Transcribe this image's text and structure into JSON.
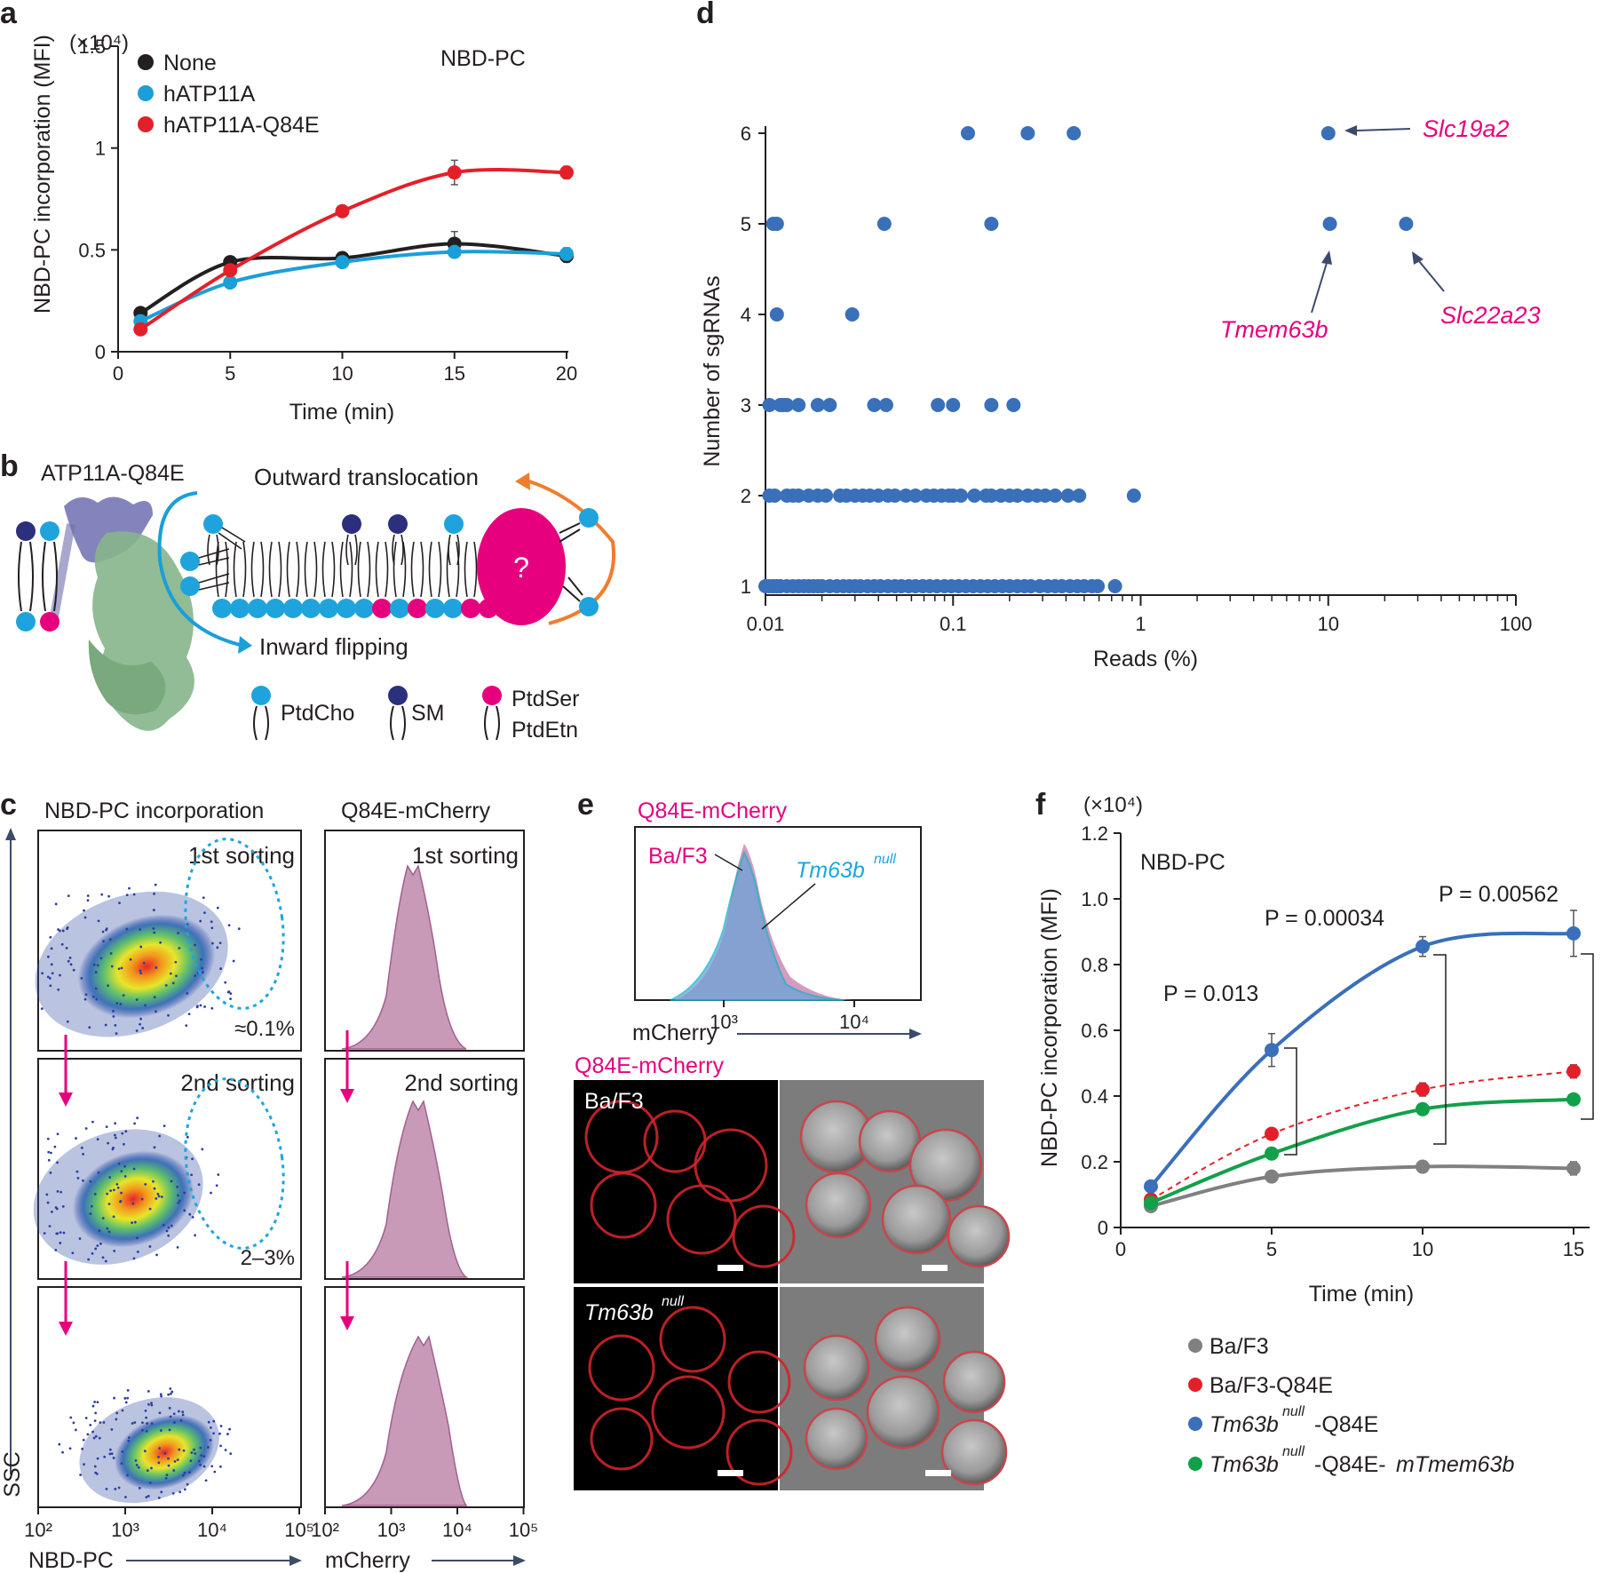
{
  "panels": {
    "a": {
      "label": "a",
      "multiplier": "(×10⁴)",
      "title": "NBD-PC",
      "ylabel": "NBD-PC incorporation (MFI)",
      "xlabel": "Time (min)",
      "xticks": [
        "0",
        "5",
        "10",
        "15",
        "20"
      ],
      "yticks": [
        "0",
        "0.5",
        "1",
        "1.5"
      ]
    },
    "b": {
      "label": "b",
      "protein": "ATP11A-Q84E",
      "outward": "Outward translocation",
      "inward": "Inward flipping",
      "unknown": "?",
      "legend": [
        "PtdCho",
        "SM",
        "PtdSer",
        "PtdEtn"
      ],
      "colors": {
        "ptdcho": "#1fa3dc",
        "sm": "#2b2f7d",
        "ptdser": "#e6007e"
      }
    },
    "c": {
      "label": "c",
      "col1": "NBD-PC incorporation",
      "col2": "Q84E-mCherry",
      "rounds": [
        "1st sorting",
        "2nd sorting"
      ],
      "gates": [
        "≈0.1%",
        "2–3%"
      ],
      "ylabel": "SSC",
      "xlabel1": "NBD-PC",
      "xlabel2": "mCherry",
      "xticks1": [
        "10²",
        "10³",
        "10⁴",
        "10⁵"
      ],
      "xticks2": [
        "10²",
        "10³",
        "10⁴",
        "10⁵"
      ]
    },
    "d": {
      "label": "d",
      "ylabel": "Number of sgRNAs",
      "xlabel": "Reads (%)",
      "xticks": [
        "0.01",
        "0.1",
        "1",
        "10",
        "100"
      ],
      "yticks": [
        "1",
        "2",
        "3",
        "4",
        "5",
        "6"
      ],
      "genes": [
        "Slc19a2",
        "Tmem63b",
        "Slc22a23"
      ]
    },
    "e": {
      "label": "e",
      "hist_title": "Q84E-mCherry",
      "hist_labels": [
        "Ba/F3",
        "Tm63b",
        "null"
      ],
      "xticks": [
        "10³",
        "10⁴"
      ],
      "xlabel": "mCherry",
      "img_title": "Q84E-mCherry",
      "row_labels": [
        "Ba/F3",
        "Tm63b",
        "null"
      ]
    },
    "f": {
      "label": "f",
      "multiplier": "(×10⁴)",
      "title": "NBD-PC",
      "ylabel": "NBD-PC incorporation (MFI)",
      "xlabel": "Time (min)",
      "xticks": [
        "0",
        "5",
        "10",
        "15"
      ],
      "yticks": [
        "0",
        "0.2",
        "0.4",
        "0.6",
        "0.8",
        "1.0",
        "1.2"
      ],
      "pvalues": [
        "P = 0.013",
        "P = 0.00034",
        "P = 0.00562"
      ],
      "legend": [
        {
          "text": "Ba/F3",
          "sup": "",
          "rest": ""
        },
        {
          "text": "Ba/F3-Q84E",
          "sup": "",
          "rest": ""
        },
        {
          "text": "Tm63b",
          "sup": "null",
          "rest": "-Q84E"
        },
        {
          "text": "Tm63b",
          "sup": "null",
          "rest": "-Q84E-",
          "rest_italic": "mTmem63b"
        }
      ]
    }
  },
  "chart_data": [
    {
      "panel": "a",
      "type": "line",
      "xlim": [
        0,
        20
      ],
      "ylim": [
        0,
        1.5
      ],
      "series": [
        {
          "name": "None",
          "color": "#231f20",
          "x": [
            1,
            5,
            10,
            15,
            20
          ],
          "y": [
            0.19,
            0.44,
            0.46,
            0.53,
            0.47
          ],
          "err": [
            0,
            0,
            0,
            0.06,
            0.03
          ]
        },
        {
          "name": "hATP11A",
          "color": "#1a9fd8",
          "x": [
            1,
            5,
            10,
            15,
            20
          ],
          "y": [
            0.15,
            0.34,
            0.44,
            0.49,
            0.48
          ],
          "err": [
            0,
            0,
            0,
            0.02,
            0.03
          ]
        },
        {
          "name": "hATP11A-Q84E",
          "color": "#e3202a",
          "x": [
            1,
            5,
            10,
            15,
            20
          ],
          "y": [
            0.11,
            0.4,
            0.69,
            0.88,
            0.88
          ],
          "err": [
            0,
            0,
            0,
            0.06,
            0.03
          ]
        }
      ]
    },
    {
      "panel": "d",
      "type": "scatter",
      "xscale": "log",
      "xlim": [
        0.01,
        100
      ],
      "ylim": [
        1,
        6
      ],
      "color": "#3a6fba",
      "labeled_points": [
        {
          "name": "Slc19a2",
          "x": 10,
          "y": 6
        },
        {
          "name": "Tmem63b",
          "x": 10.2,
          "y": 5
        },
        {
          "name": "Slc22a23",
          "x": 26,
          "y": 5
        }
      ],
      "points": [
        [
          0.12,
          6
        ],
        [
          0.25,
          6
        ],
        [
          0.44,
          6
        ],
        [
          10,
          6
        ],
        [
          0.011,
          5
        ],
        [
          0.0115,
          5
        ],
        [
          0.043,
          5
        ],
        [
          0.16,
          5
        ],
        [
          10.2,
          5
        ],
        [
          26,
          5
        ],
        [
          0.0115,
          4
        ],
        [
          0.029,
          4
        ],
        [
          0.0105,
          3
        ],
        [
          0.012,
          3
        ],
        [
          0.0125,
          3
        ],
        [
          0.013,
          3
        ],
        [
          0.015,
          3
        ],
        [
          0.019,
          3
        ],
        [
          0.022,
          3
        ],
        [
          0.038,
          3
        ],
        [
          0.044,
          3
        ],
        [
          0.083,
          3
        ],
        [
          0.1,
          3
        ],
        [
          0.16,
          3
        ],
        [
          0.21,
          3
        ],
        [
          0.0105,
          2
        ],
        [
          0.0112,
          2
        ],
        [
          0.013,
          2
        ],
        [
          0.014,
          2
        ],
        [
          0.015,
          2
        ],
        [
          0.017,
          2
        ],
        [
          0.019,
          2
        ],
        [
          0.021,
          2
        ],
        [
          0.025,
          2
        ],
        [
          0.027,
          2
        ],
        [
          0.03,
          2
        ],
        [
          0.033,
          2
        ],
        [
          0.036,
          2
        ],
        [
          0.04,
          2
        ],
        [
          0.045,
          2
        ],
        [
          0.049,
          2
        ],
        [
          0.056,
          2
        ],
        [
          0.063,
          2
        ],
        [
          0.072,
          2
        ],
        [
          0.079,
          2
        ],
        [
          0.087,
          2
        ],
        [
          0.095,
          2
        ],
        [
          0.1,
          2
        ],
        [
          0.11,
          2
        ],
        [
          0.13,
          2
        ],
        [
          0.15,
          2
        ],
        [
          0.16,
          2
        ],
        [
          0.18,
          2
        ],
        [
          0.2,
          2
        ],
        [
          0.22,
          2
        ],
        [
          0.25,
          2
        ],
        [
          0.28,
          2
        ],
        [
          0.31,
          2
        ],
        [
          0.35,
          2
        ],
        [
          0.41,
          2
        ],
        [
          0.47,
          2
        ],
        [
          0.92,
          2
        ],
        [
          0.01,
          1
        ],
        [
          0.0105,
          1
        ],
        [
          0.011,
          1
        ],
        [
          0.0115,
          1
        ],
        [
          0.012,
          1
        ],
        [
          0.013,
          1
        ],
        [
          0.014,
          1
        ],
        [
          0.015,
          1
        ],
        [
          0.016,
          1
        ],
        [
          0.017,
          1
        ],
        [
          0.018,
          1
        ],
        [
          0.019,
          1
        ],
        [
          0.02,
          1
        ],
        [
          0.022,
          1
        ],
        [
          0.024,
          1
        ],
        [
          0.026,
          1
        ],
        [
          0.028,
          1
        ],
        [
          0.03,
          1
        ],
        [
          0.032,
          1
        ],
        [
          0.035,
          1
        ],
        [
          0.038,
          1
        ],
        [
          0.041,
          1
        ],
        [
          0.045,
          1
        ],
        [
          0.049,
          1
        ],
        [
          0.053,
          1
        ],
        [
          0.058,
          1
        ],
        [
          0.063,
          1
        ],
        [
          0.069,
          1
        ],
        [
          0.075,
          1
        ],
        [
          0.082,
          1
        ],
        [
          0.09,
          1
        ],
        [
          0.098,
          1
        ],
        [
          0.107,
          1
        ],
        [
          0.117,
          1
        ],
        [
          0.128,
          1
        ],
        [
          0.14,
          1
        ],
        [
          0.153,
          1
        ],
        [
          0.167,
          1
        ],
        [
          0.183,
          1
        ],
        [
          0.2,
          1
        ],
        [
          0.22,
          1
        ],
        [
          0.24,
          1
        ],
        [
          0.26,
          1
        ],
        [
          0.29,
          1
        ],
        [
          0.32,
          1
        ],
        [
          0.35,
          1
        ],
        [
          0.38,
          1
        ],
        [
          0.42,
          1
        ],
        [
          0.46,
          1
        ],
        [
          0.5,
          1
        ],
        [
          0.55,
          1
        ],
        [
          0.59,
          1
        ],
        [
          0.73,
          1
        ]
      ]
    },
    {
      "panel": "f",
      "type": "line",
      "xlim": [
        0,
        15
      ],
      "ylim": [
        0,
        1.2
      ],
      "series": [
        {
          "name": "Ba/F3",
          "color": "#808080",
          "x": [
            1,
            5,
            10,
            15
          ],
          "y": [
            0.065,
            0.155,
            0.185,
            0.18
          ],
          "err": [
            0,
            0,
            0.01,
            0.02
          ],
          "dashed": false
        },
        {
          "name": "Ba/F3-Q84E",
          "color": "#e3202a",
          "x": [
            1,
            5,
            10,
            15
          ],
          "y": [
            0.085,
            0.285,
            0.42,
            0.475
          ],
          "err": [
            0,
            0,
            0.02,
            0.02
          ],
          "dashed": true
        },
        {
          "name": "Tm63bnull-Q84E",
          "color": "#3a6fba",
          "x": [
            1,
            5,
            10,
            15
          ],
          "y": [
            0.125,
            0.54,
            0.855,
            0.895
          ],
          "err": [
            0,
            0.05,
            0.03,
            0.07
          ],
          "dashed": false
        },
        {
          "name": "Tm63bnull-Q84E-mTmem63b",
          "color": "#12a04a",
          "x": [
            1,
            5,
            10,
            15
          ],
          "y": [
            0.075,
            0.225,
            0.36,
            0.39
          ],
          "err": [
            0,
            0,
            0.01,
            0.015
          ],
          "dashed": false
        }
      ]
    }
  ]
}
